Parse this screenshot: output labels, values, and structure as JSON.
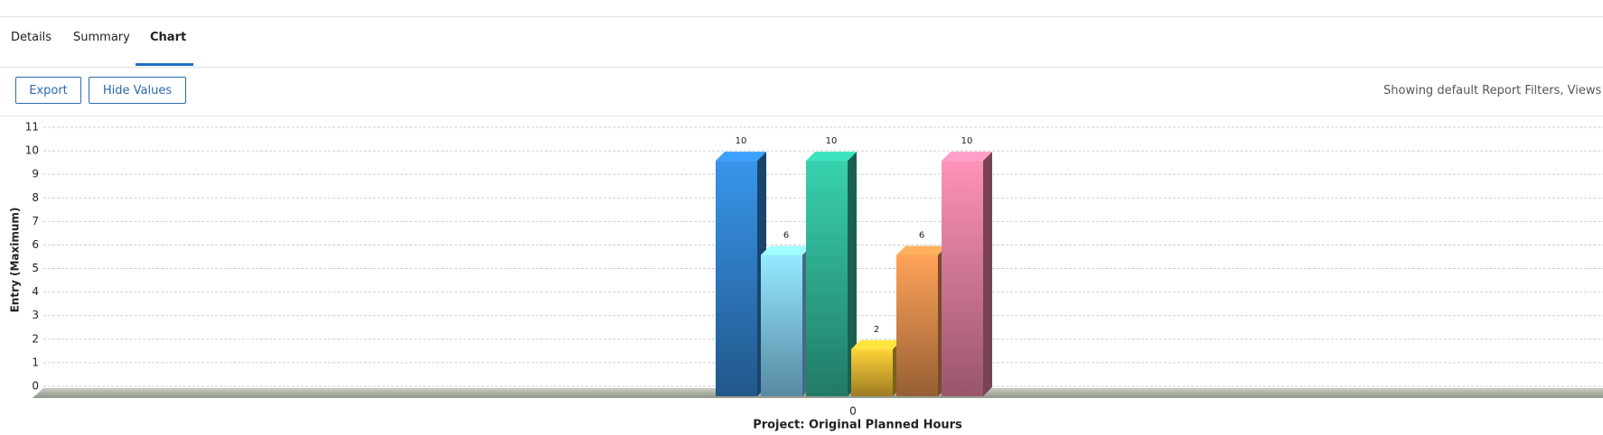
{
  "tabs": [
    "Details",
    "Summary",
    "Chart"
  ],
  "active_tab": 2,
  "buttons": [
    "Export",
    "Hide Values"
  ],
  "status_text": "Showing default Report Filters, Views ar",
  "chart_data": {
    "type": "bar",
    "categories": [
      "0"
    ],
    "xlabel": "Project: Original Planned Hours",
    "ylabel": "Entry (Maximum)",
    "series": [
      {
        "color": "#2f7cc4",
        "values": [
          10
        ]
      },
      {
        "color": "#7cc3e8",
        "values": [
          6
        ]
      },
      {
        "color": "#2fae92",
        "values": [
          10
        ]
      },
      {
        "color": "#e0b030",
        "values": [
          2
        ]
      },
      {
        "color": "#d8884a",
        "values": [
          6
        ]
      },
      {
        "color": "#d97a9a",
        "values": [
          10
        ]
      }
    ],
    "ylim": [
      0,
      11
    ],
    "yticks": [
      0,
      1,
      2,
      3,
      4,
      5,
      6,
      7,
      8,
      9,
      10,
      11
    ],
    "grid": true
  }
}
